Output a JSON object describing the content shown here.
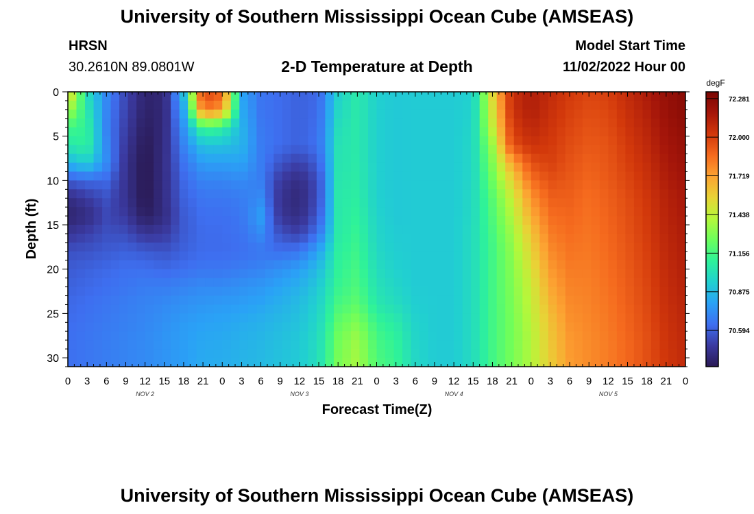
{
  "header": {
    "title": "University of Southern Mississippi Ocean Cube (AMSEAS)",
    "station_name": "HRSN",
    "station_coords": "30.2610N  89.0801W",
    "model_start_label": "Model Start Time",
    "model_start_value": "11/02/2022 Hour 00"
  },
  "footer": {
    "title": "University of Southern Mississippi Ocean Cube (AMSEAS)"
  },
  "chart_data": {
    "type": "heatmap",
    "title": "2-D Temperature at Depth",
    "xlabel": "Forecast Time(Z)",
    "ylabel": "Depth (ft)",
    "x_tick_labels": [
      "0",
      "3",
      "6",
      "9",
      "12",
      "15",
      "18",
      "21",
      "0",
      "3",
      "6",
      "9",
      "12",
      "15",
      "18",
      "21",
      "0",
      "3",
      "6",
      "9",
      "12",
      "15",
      "18",
      "21",
      "0",
      "3",
      "6",
      "9",
      "12",
      "15",
      "18",
      "21",
      "0"
    ],
    "x_range_hours": [
      0,
      96
    ],
    "date_labels": [
      {
        "label": "NOV 2",
        "at_hour": 12
      },
      {
        "label": "NOV 3",
        "at_hour": 36
      },
      {
        "label": "NOV 4",
        "at_hour": 60
      },
      {
        "label": "NOV 5",
        "at_hour": 84
      }
    ],
    "y_ticks": [
      "0",
      "5",
      "10",
      "15",
      "20",
      "25",
      "30"
    ],
    "y_range": [
      0,
      31
    ],
    "y_inverted": true,
    "colorbar": {
      "unit": "degF",
      "labels": [
        "72.281",
        "72.000",
        "71.719",
        "71.438",
        "71.156",
        "70.875",
        "70.594"
      ],
      "range": [
        70.33,
        72.33
      ],
      "colors": [
        "#2a1a55",
        "#3b3aa0",
        "#3e6ff0",
        "#2aa2f6",
        "#21d0d0",
        "#2ef29a",
        "#6cfe5c",
        "#b5f73a",
        "#e8d336",
        "#fca332",
        "#f56a1e",
        "#d2380b",
        "#a5160a",
        "#7a0603"
      ]
    },
    "depths": [
      0,
      2,
      4,
      6,
      8,
      10,
      12,
      14,
      16,
      18,
      20,
      22,
      24,
      26,
      28,
      31
    ],
    "hours": [
      0,
      3,
      6,
      9,
      12,
      15,
      18,
      21,
      24,
      27,
      30,
      33,
      36,
      39,
      42,
      45,
      48,
      51,
      54,
      57,
      60,
      63,
      66,
      69,
      72,
      75,
      78,
      81,
      84,
      87,
      90,
      93,
      96
    ],
    "temperature_grid": [
      [
        71.6,
        71.0,
        70.72,
        70.52,
        70.38,
        70.4,
        70.9,
        72.0,
        71.9,
        70.8,
        70.66,
        70.63,
        70.6,
        70.62,
        70.95,
        71.06,
        70.95,
        70.92,
        70.93,
        70.93,
        70.93,
        70.95,
        71.55,
        72.05,
        72.14,
        72.08,
        72.02,
        71.98,
        72.0,
        72.08,
        72.15,
        72.23,
        72.28
      ],
      [
        71.4,
        71.05,
        70.71,
        70.51,
        70.37,
        70.4,
        70.82,
        71.85,
        71.75,
        70.82,
        70.66,
        70.63,
        70.6,
        70.63,
        70.97,
        71.06,
        70.95,
        70.92,
        70.93,
        70.93,
        70.93,
        70.96,
        71.5,
        72.05,
        72.14,
        72.06,
        72.0,
        71.96,
        71.98,
        72.06,
        72.13,
        72.22,
        72.27
      ],
      [
        71.15,
        71.1,
        70.7,
        70.49,
        70.35,
        70.41,
        70.75,
        71.15,
        71.1,
        70.85,
        70.67,
        70.63,
        70.6,
        70.64,
        71.0,
        71.06,
        70.95,
        70.92,
        70.93,
        70.93,
        70.93,
        70.97,
        71.45,
        72.0,
        72.1,
        72.04,
        71.98,
        71.94,
        71.96,
        72.04,
        72.11,
        72.2,
        72.25
      ],
      [
        71.05,
        71.1,
        70.72,
        70.47,
        70.33,
        70.42,
        70.7,
        70.9,
        70.9,
        70.85,
        70.68,
        70.63,
        70.6,
        70.65,
        71.02,
        71.06,
        70.95,
        70.92,
        70.93,
        70.93,
        70.93,
        70.98,
        71.35,
        71.95,
        72.05,
        72.02,
        71.96,
        71.92,
        71.94,
        72.02,
        72.09,
        72.18,
        72.23
      ],
      [
        70.85,
        70.95,
        70.73,
        70.45,
        70.32,
        70.43,
        70.65,
        70.78,
        70.78,
        70.8,
        70.68,
        70.56,
        70.5,
        70.6,
        71.03,
        71.06,
        70.95,
        70.92,
        70.93,
        70.93,
        70.93,
        70.98,
        71.3,
        71.7,
        71.95,
        72.0,
        71.94,
        71.9,
        71.93,
        72.0,
        72.07,
        72.16,
        72.21
      ],
      [
        70.58,
        70.62,
        70.62,
        70.45,
        70.32,
        70.43,
        70.62,
        70.7,
        70.7,
        70.72,
        70.68,
        70.48,
        70.42,
        70.55,
        71.04,
        71.07,
        70.95,
        70.92,
        70.93,
        70.93,
        70.93,
        70.98,
        71.25,
        71.55,
        71.85,
        71.95,
        71.92,
        71.88,
        71.92,
        71.98,
        72.05,
        72.14,
        72.19
      ],
      [
        70.42,
        70.48,
        70.55,
        70.45,
        70.32,
        70.43,
        70.6,
        70.66,
        70.66,
        70.68,
        70.72,
        70.45,
        70.4,
        70.55,
        71.05,
        71.08,
        70.95,
        70.92,
        70.93,
        70.93,
        70.93,
        70.99,
        71.2,
        71.45,
        71.75,
        71.9,
        71.9,
        71.86,
        71.9,
        71.96,
        72.03,
        72.12,
        72.17
      ],
      [
        70.38,
        70.42,
        70.52,
        70.48,
        70.35,
        70.42,
        70.58,
        70.64,
        70.64,
        70.66,
        70.78,
        70.46,
        70.42,
        70.58,
        71.05,
        71.1,
        70.96,
        70.92,
        70.93,
        70.93,
        70.93,
        70.99,
        71.18,
        71.4,
        71.68,
        71.86,
        71.88,
        71.85,
        71.89,
        71.95,
        72.02,
        72.11,
        72.16
      ],
      [
        70.46,
        70.5,
        70.55,
        70.54,
        70.46,
        70.48,
        70.58,
        70.63,
        70.63,
        70.65,
        70.72,
        70.55,
        70.5,
        70.66,
        71.06,
        71.12,
        70.97,
        70.93,
        70.93,
        70.93,
        70.93,
        71.0,
        71.16,
        71.35,
        71.6,
        71.82,
        71.86,
        71.84,
        71.88,
        71.94,
        72.01,
        72.1,
        72.15
      ],
      [
        70.55,
        70.56,
        70.58,
        70.6,
        70.58,
        70.56,
        70.6,
        70.63,
        70.63,
        70.64,
        70.66,
        70.64,
        70.66,
        70.8,
        71.08,
        71.14,
        70.98,
        70.94,
        70.93,
        70.93,
        70.93,
        71.0,
        71.15,
        71.32,
        71.55,
        71.78,
        71.84,
        71.83,
        71.87,
        71.93,
        72.0,
        72.09,
        72.14
      ],
      [
        70.58,
        70.6,
        70.62,
        70.64,
        70.64,
        70.62,
        70.64,
        70.66,
        70.66,
        70.68,
        70.7,
        70.74,
        70.78,
        70.88,
        71.1,
        71.16,
        71.0,
        70.95,
        70.93,
        70.93,
        70.93,
        71.0,
        71.15,
        71.3,
        71.5,
        71.74,
        71.82,
        71.82,
        71.86,
        71.92,
        71.99,
        72.08,
        72.13
      ],
      [
        70.6,
        70.62,
        70.64,
        70.66,
        70.68,
        70.68,
        70.7,
        70.72,
        70.72,
        70.74,
        70.76,
        70.8,
        70.84,
        70.93,
        71.12,
        71.18,
        71.02,
        70.97,
        70.93,
        70.93,
        70.93,
        71.0,
        71.15,
        71.29,
        71.46,
        71.7,
        71.8,
        71.81,
        71.85,
        71.91,
        71.98,
        72.07,
        72.12
      ],
      [
        70.62,
        70.64,
        70.66,
        70.68,
        70.7,
        70.72,
        70.74,
        70.76,
        70.77,
        70.78,
        70.8,
        70.84,
        70.88,
        70.96,
        71.16,
        71.22,
        71.05,
        71.0,
        70.94,
        70.93,
        70.93,
        71.0,
        71.15,
        71.28,
        71.44,
        71.66,
        71.78,
        71.8,
        71.84,
        71.9,
        71.97,
        72.06,
        72.11
      ],
      [
        70.63,
        70.65,
        70.67,
        70.69,
        70.71,
        70.74,
        70.77,
        70.79,
        70.8,
        70.82,
        70.84,
        70.87,
        70.9,
        70.98,
        71.22,
        71.3,
        71.12,
        71.06,
        70.96,
        70.93,
        70.93,
        71.0,
        71.15,
        71.27,
        71.42,
        71.62,
        71.76,
        71.79,
        71.83,
        71.89,
        71.96,
        72.05,
        72.1
      ],
      [
        70.64,
        70.66,
        70.68,
        70.7,
        70.72,
        70.75,
        70.78,
        70.81,
        70.82,
        70.84,
        70.86,
        70.89,
        70.92,
        71.0,
        71.26,
        71.36,
        71.16,
        71.1,
        70.97,
        70.93,
        70.93,
        71.0,
        71.15,
        71.27,
        71.4,
        71.6,
        71.74,
        71.78,
        71.82,
        71.88,
        71.95,
        72.04,
        72.09
      ],
      [
        70.64,
        70.66,
        70.68,
        70.7,
        70.72,
        70.75,
        70.78,
        70.82,
        70.83,
        70.85,
        70.87,
        70.9,
        70.93,
        71.01,
        71.28,
        71.38,
        71.18,
        71.12,
        70.98,
        70.93,
        70.93,
        71.0,
        71.15,
        71.27,
        71.4,
        71.58,
        71.73,
        71.78,
        71.82,
        71.88,
        71.95,
        72.03,
        72.08
      ]
    ]
  }
}
